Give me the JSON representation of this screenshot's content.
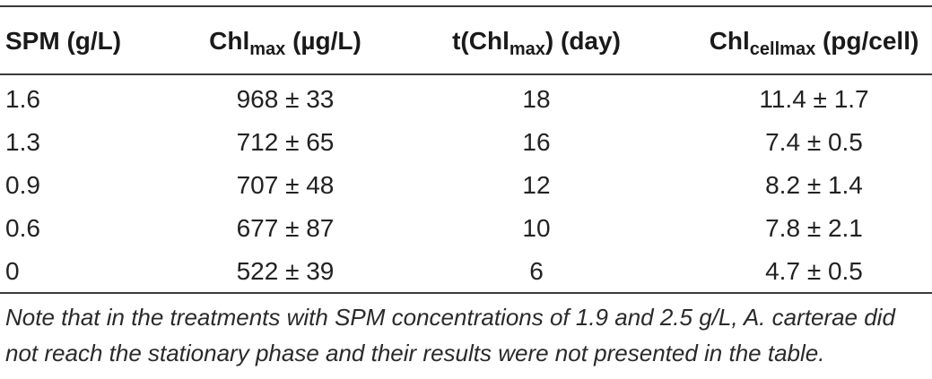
{
  "table": {
    "headers": {
      "spm": "SPM (g/L)",
      "chlmax_base": "Chl",
      "chlmax_sub": "max",
      "chlmax_unit": " (µg/L)",
      "tchl_prefix": "t(Chl",
      "tchl_sub": "max",
      "tchl_suffix": ") (day)",
      "chlcell_base": "Chl",
      "chlcell_sub": "cellmax",
      "chlcell_unit": " (pg/cell)"
    },
    "rows": [
      {
        "spm": "1.6",
        "chlmax": "968 ± 33",
        "tchl": "18",
        "chlcell": "11.4 ± 1.7"
      },
      {
        "spm": "1.3",
        "chlmax": "712 ± 65",
        "tchl": "16",
        "chlcell": "7.4 ± 0.5"
      },
      {
        "spm": "0.9",
        "chlmax": "707 ± 48",
        "tchl": "12",
        "chlcell": "8.2 ± 1.4"
      },
      {
        "spm": "0.6",
        "chlmax": "677 ± 87",
        "tchl": "10",
        "chlcell": "7.8 ± 2.1"
      },
      {
        "spm": "0",
        "chlmax": "522 ± 39",
        "tchl": "6",
        "chlcell": "4.7 ± 0.5"
      }
    ],
    "note": "Note that in the treatments with SPM concentrations of 1.9 and 2.5 g/L, A. carterae did not reach the stationary phase and their results were not presented in the table."
  }
}
